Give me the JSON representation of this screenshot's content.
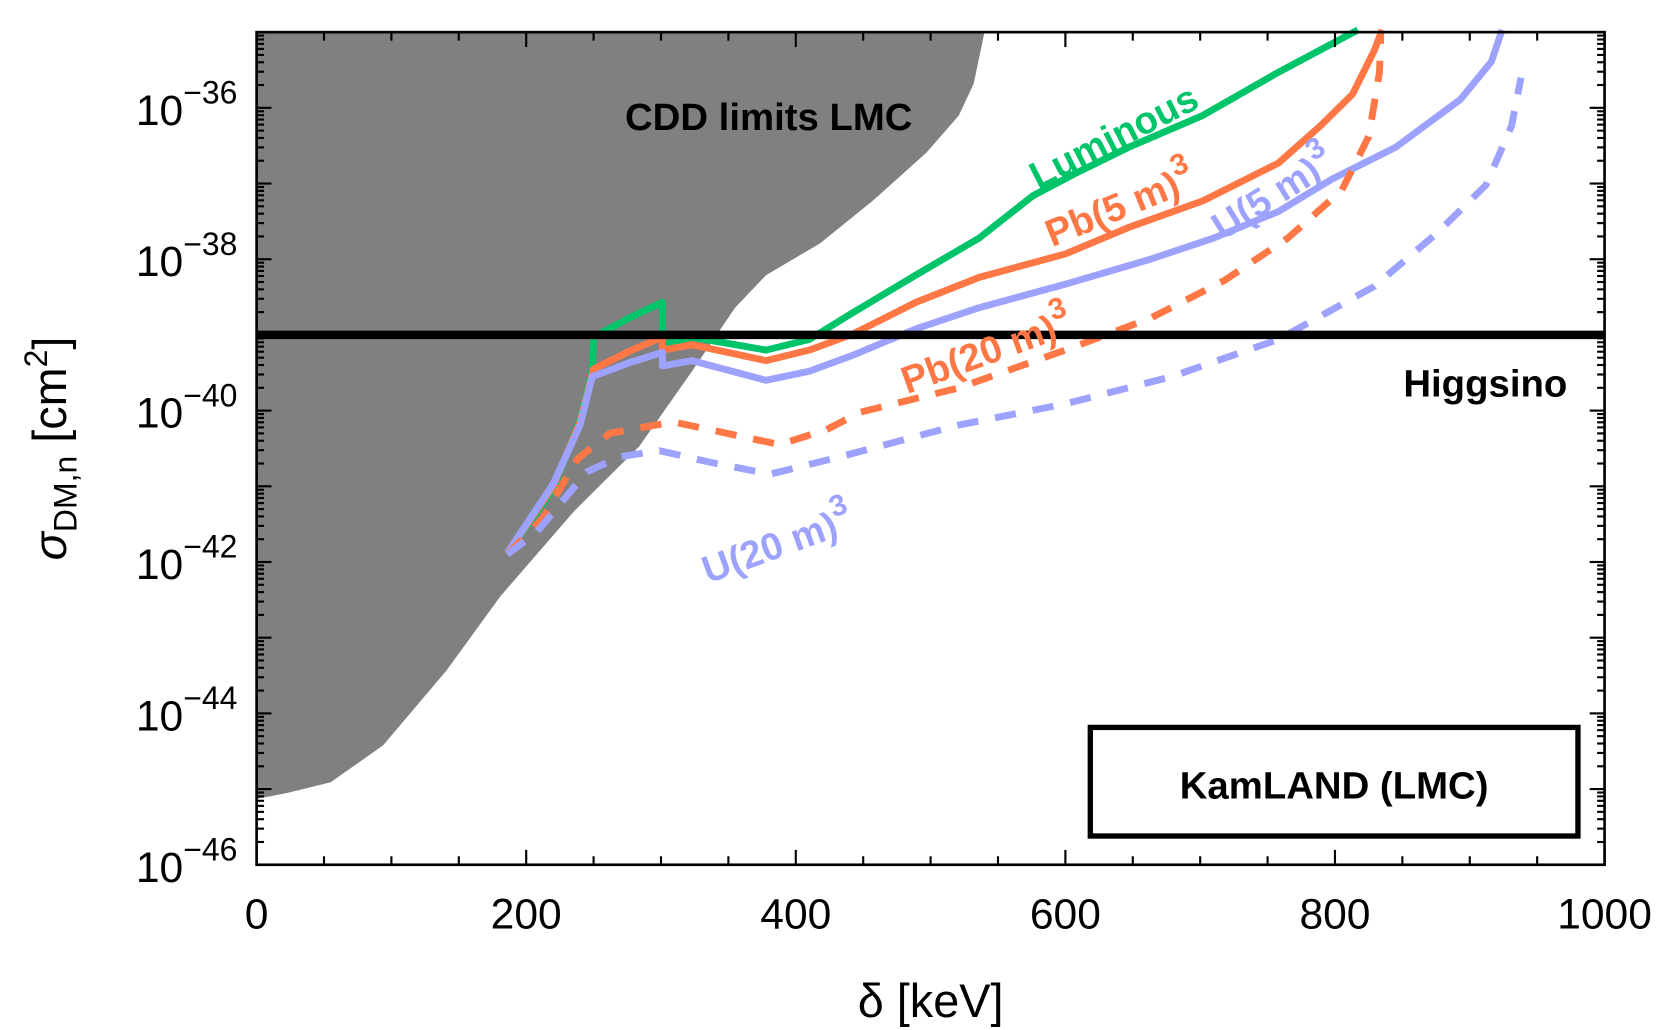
{
  "chart_data": {
    "type": "line",
    "xlabel": "δ [keV]",
    "ylabel_main": "σ",
    "ylabel_sub": "DM,n",
    "ylabel_unit": "[cm",
    "ylabel_unit_sup": "2",
    "ylabel_unit_close": "]",
    "xlim": [
      0,
      1000
    ],
    "ylim_log10": [
      -46,
      -35
    ],
    "yscale": "log",
    "grid": false,
    "xticks": [
      "0",
      "200",
      "400",
      "600",
      "800",
      "1000"
    ],
    "yticks": [
      {
        "base": "10",
        "exp": "−36",
        "value": -36
      },
      {
        "base": "10",
        "exp": "−38",
        "value": -38
      },
      {
        "base": "10",
        "exp": "−40",
        "value": -40
      },
      {
        "base": "10",
        "exp": "−42",
        "value": -42
      },
      {
        "base": "10",
        "exp": "−44",
        "value": -44
      },
      {
        "base": "10",
        "exp": "−46",
        "value": -46
      }
    ],
    "excluded_region": {
      "label": "CDD limits LMC",
      "color": "#808080",
      "boundary_log10": [
        [
          0,
          -35
        ],
        [
          540,
          -35
        ],
        [
          532,
          -35.68
        ],
        [
          521,
          -36.1
        ],
        [
          497,
          -36.59
        ],
        [
          457,
          -37.23
        ],
        [
          418,
          -37.79
        ],
        [
          378,
          -38.21
        ],
        [
          355,
          -38.64
        ],
        [
          323,
          -39.48
        ],
        [
          284,
          -40.47
        ],
        [
          236,
          -41.32
        ],
        [
          181,
          -42.45
        ],
        [
          141,
          -43.43
        ],
        [
          94,
          -44.42
        ],
        [
          55,
          -44.91
        ],
        [
          23,
          -45.05
        ],
        [
          0,
          -45.13
        ]
      ]
    },
    "reference_line": {
      "label": "Higgsino",
      "log10_value": -39,
      "color": "#000000"
    },
    "series": [
      {
        "name": "Luminous",
        "label_sup": "",
        "color": "#00c46a",
        "style": "solid",
        "points_log10": [
          [
            186,
            -41.88
          ],
          [
            220,
            -41.04
          ],
          [
            240,
            -40.12
          ],
          [
            249,
            -39.48
          ],
          [
            250,
            -39.03
          ],
          [
            276,
            -38.78
          ],
          [
            301,
            -38.57
          ],
          [
            301,
            -39.13
          ],
          [
            323,
            -39.03
          ],
          [
            378,
            -39.2
          ],
          [
            410,
            -39.06
          ],
          [
            442,
            -38.71
          ],
          [
            489,
            -38.21
          ],
          [
            536,
            -37.72
          ],
          [
            576,
            -37.16
          ],
          [
            607,
            -36.87
          ],
          [
            647,
            -36.52
          ],
          [
            702,
            -36.1
          ],
          [
            758,
            -35.53
          ],
          [
            817,
            -34.97
          ]
        ]
      },
      {
        "name": "Pb(5 m)",
        "label_sup": "3",
        "color": "#ff7744",
        "style": "solid",
        "points_log10": [
          [
            186,
            -41.88
          ],
          [
            220,
            -41.0
          ],
          [
            240,
            -40.15
          ],
          [
            250,
            -39.45
          ],
          [
            276,
            -39.22
          ],
          [
            301,
            -39.03
          ],
          [
            301,
            -39.2
          ],
          [
            323,
            -39.13
          ],
          [
            378,
            -39.34
          ],
          [
            410,
            -39.2
          ],
          [
            442,
            -38.99
          ],
          [
            489,
            -38.57
          ],
          [
            536,
            -38.24
          ],
          [
            600,
            -37.93
          ],
          [
            647,
            -37.58
          ],
          [
            702,
            -37.23
          ],
          [
            758,
            -36.73
          ],
          [
            789,
            -36.24
          ],
          [
            813,
            -35.82
          ],
          [
            829,
            -35.25
          ],
          [
            835,
            -34.97
          ]
        ]
      },
      {
        "name": "U(5 m)",
        "label_sup": "3",
        "color": "#9ea2ff",
        "style": "solid",
        "points_log10": [
          [
            186,
            -41.88
          ],
          [
            220,
            -40.97
          ],
          [
            240,
            -40.19
          ],
          [
            249,
            -39.55
          ],
          [
            276,
            -39.37
          ],
          [
            301,
            -39.23
          ],
          [
            301,
            -39.41
          ],
          [
            323,
            -39.34
          ],
          [
            378,
            -39.6
          ],
          [
            410,
            -39.48
          ],
          [
            442,
            -39.27
          ],
          [
            489,
            -38.92
          ],
          [
            536,
            -38.64
          ],
          [
            600,
            -38.33
          ],
          [
            663,
            -38.0
          ],
          [
            710,
            -37.72
          ],
          [
            758,
            -37.37
          ],
          [
            798,
            -36.94
          ],
          [
            845,
            -36.52
          ],
          [
            893,
            -35.89
          ],
          [
            916,
            -35.39
          ],
          [
            924,
            -34.97
          ]
        ]
      },
      {
        "name": "Pb(20 m)",
        "label_sup": "3",
        "color": "#ff7744",
        "style": "dashed",
        "points_log10": [
          [
            186,
            -41.9
          ],
          [
            212,
            -41.43
          ],
          [
            238,
            -40.64
          ],
          [
            262,
            -40.3
          ],
          [
            309,
            -40.15
          ],
          [
            349,
            -40.3
          ],
          [
            388,
            -40.45
          ],
          [
            423,
            -40.25
          ],
          [
            448,
            -40.02
          ],
          [
            521,
            -39.7
          ],
          [
            600,
            -39.2
          ],
          [
            663,
            -38.78
          ],
          [
            718,
            -38.28
          ],
          [
            765,
            -37.72
          ],
          [
            805,
            -37.09
          ],
          [
            825,
            -36.38
          ],
          [
            833,
            -35.53
          ],
          [
            834,
            -35.04
          ]
        ]
      },
      {
        "name": "U(20 m)",
        "label_sup": "3",
        "color": "#9ea2ff",
        "style": "dashed",
        "points_log10": [
          [
            186,
            -41.9
          ],
          [
            208,
            -41.6
          ],
          [
            245,
            -40.81
          ],
          [
            269,
            -40.61
          ],
          [
            299,
            -40.53
          ],
          [
            336,
            -40.68
          ],
          [
            381,
            -40.84
          ],
          [
            435,
            -40.6
          ],
          [
            521,
            -40.19
          ],
          [
            600,
            -39.91
          ],
          [
            679,
            -39.55
          ],
          [
            758,
            -39.06
          ],
          [
            829,
            -38.36
          ],
          [
            876,
            -37.65
          ],
          [
            912,
            -37.02
          ],
          [
            931,
            -36.24
          ],
          [
            938,
            -35.6
          ]
        ]
      }
    ],
    "legend_box": "KamLAND (LMC)"
  }
}
